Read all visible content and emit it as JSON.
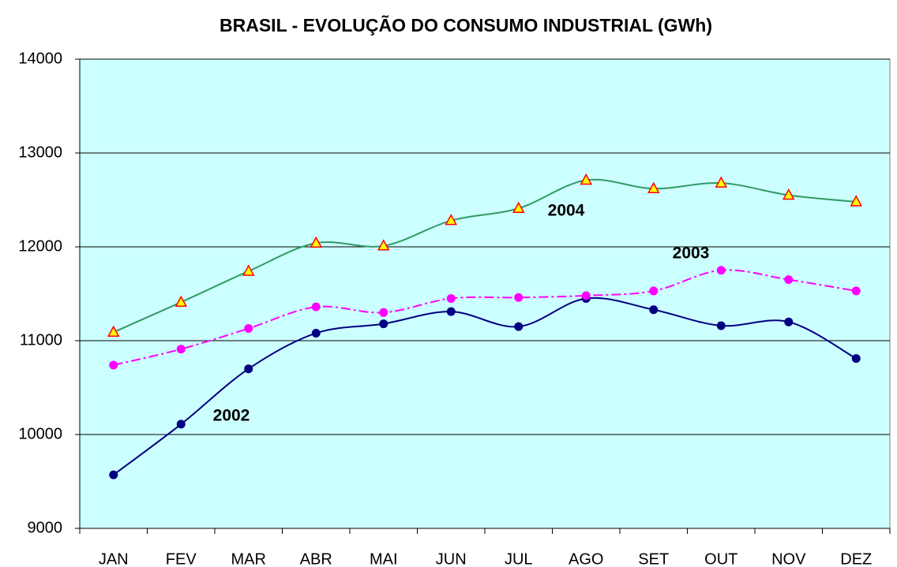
{
  "chart_data": {
    "type": "line",
    "title": "BRASIL - EVOLUÇÃO DO CONSUMO INDUSTRIAL (GWh)",
    "categories": [
      "JAN",
      "FEV",
      "MAR",
      "ABR",
      "MAI",
      "JUN",
      "JUL",
      "AGO",
      "SET",
      "OUT",
      "NOV",
      "DEZ"
    ],
    "series": [
      {
        "name": "2002",
        "color": "#000080",
        "marker": "circle",
        "dash": "solid",
        "values": [
          9570,
          10110,
          10700,
          11080,
          11180,
          11310,
          11150,
          11450,
          11330,
          11160,
          11200,
          10810
        ]
      },
      {
        "name": "2003",
        "color": "#ff00ff",
        "marker": "circle",
        "dash": "dash-dot",
        "values": [
          10740,
          10910,
          11130,
          11360,
          11300,
          11450,
          11460,
          11480,
          11530,
          11750,
          11650,
          11530
        ]
      },
      {
        "name": "2004",
        "color": "#339966",
        "marker": "triangle",
        "dash": "solid",
        "values": [
          11090,
          11410,
          11740,
          12040,
          12010,
          12280,
          12410,
          12710,
          12620,
          12680,
          12550,
          12480
        ]
      }
    ],
    "ylim": [
      9000,
      14000
    ],
    "yticks": [
      9000,
      10000,
      11000,
      12000,
      13000,
      14000
    ],
    "grid": true,
    "plot_background": "#ccffff"
  }
}
